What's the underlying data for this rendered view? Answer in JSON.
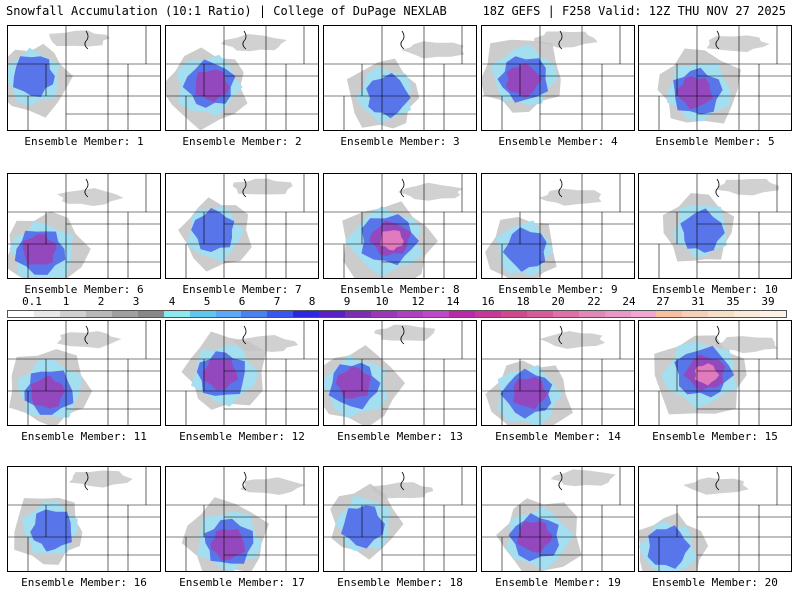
{
  "header": {
    "left_title": "Snowfall Accumulation (10:1 Ratio) | College of DuPage NEXLAB",
    "right_title": "18Z GEFS | F258 Valid: 12Z THU NOV 27 2025"
  },
  "legend": {
    "labels": [
      "0.1",
      "1",
      "2",
      "3",
      "4",
      "5",
      "6",
      "7",
      "8",
      "9",
      "10",
      "12",
      "14",
      "16",
      "18",
      "20",
      "22",
      "24",
      "27",
      "31",
      "35",
      "39"
    ],
    "colors": [
      "#ffffff",
      "#e8e8e8",
      "#d0d0d0",
      "#b8b8b8",
      "#a0a0a0",
      "#888888",
      "#8ee8f0",
      "#5cc8f0",
      "#5aa8f8",
      "#4a80f0",
      "#3a58f0",
      "#2a28e0",
      "#5a20c8",
      "#7a30b0",
      "#9a38b8",
      "#b040c0",
      "#c048c8",
      "#b828a8",
      "#c83898",
      "#d04890",
      "#d85a98",
      "#e070a8",
      "#e088b8",
      "#e898c8",
      "#f0a8d0",
      "#f8c0a0",
      "#f8d0b8",
      "#f8e0c8",
      "#faead8",
      "#fdf2e6"
    ]
  },
  "members": [
    {
      "caption": "Ensemble Member: 1",
      "level": 2
    },
    {
      "caption": "Ensemble Member: 2",
      "level": 3
    },
    {
      "caption": "Ensemble Member: 3",
      "level": 2
    },
    {
      "caption": "Ensemble Member: 4",
      "level": 3
    },
    {
      "caption": "Ensemble Member: 5",
      "level": 3
    },
    {
      "caption": "Ensemble Member: 6",
      "level": 3
    },
    {
      "caption": "Ensemble Member: 7",
      "level": 2
    },
    {
      "caption": "Ensemble Member: 8",
      "level": 4
    },
    {
      "caption": "Ensemble Member: 9",
      "level": 2
    },
    {
      "caption": "Ensemble Member: 10",
      "level": 2
    },
    {
      "caption": "Ensemble Member: 11",
      "level": 3
    },
    {
      "caption": "Ensemble Member: 12",
      "level": 3
    },
    {
      "caption": "Ensemble Member: 13",
      "level": 3
    },
    {
      "caption": "Ensemble Member: 14",
      "level": 3
    },
    {
      "caption": "Ensemble Member: 15",
      "level": 4
    },
    {
      "caption": "Ensemble Member: 16",
      "level": 2
    },
    {
      "caption": "Ensemble Member: 17",
      "level": 3
    },
    {
      "caption": "Ensemble Member: 18",
      "level": 2
    },
    {
      "caption": "Ensemble Member: 19",
      "level": 3
    },
    {
      "caption": "Ensemble Member: 20",
      "level": 2
    }
  ]
}
